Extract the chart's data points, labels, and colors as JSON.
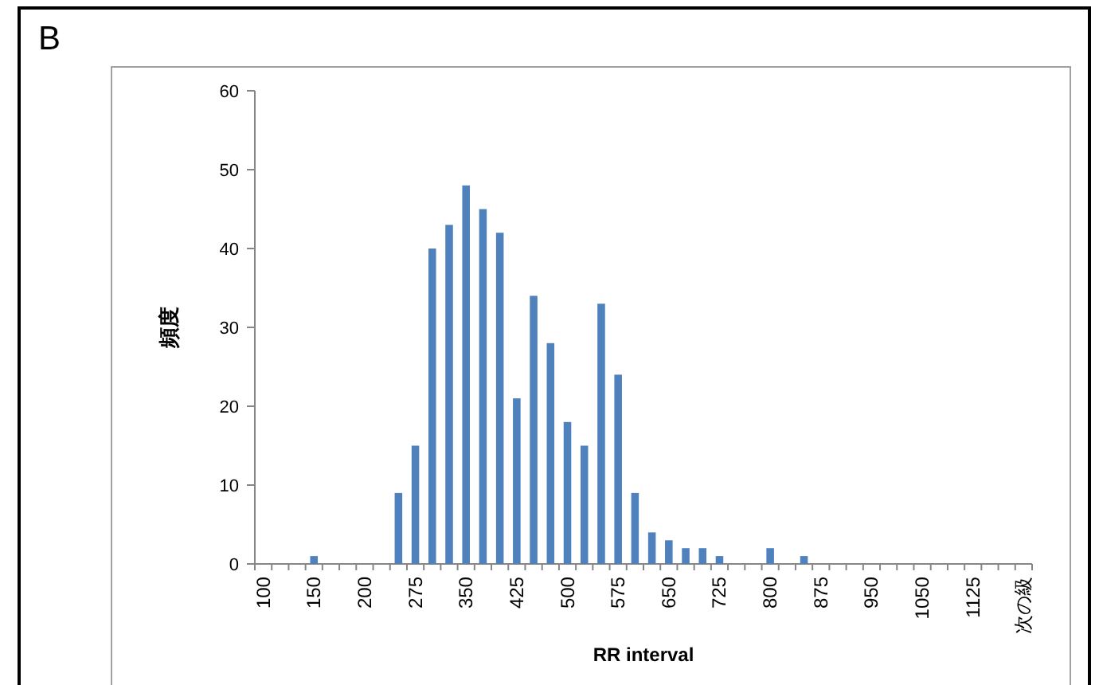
{
  "chart_data": {
    "type": "bar",
    "xlabel": "RR interval",
    "ylabel": "頻度",
    "annotations": [
      "B"
    ],
    "categories": [
      "100",
      null,
      null,
      "150",
      null,
      null,
      "200",
      null,
      null,
      "275",
      null,
      null,
      "350",
      null,
      null,
      "425",
      null,
      null,
      "500",
      null,
      null,
      "575",
      null,
      null,
      "650",
      null,
      null,
      "725",
      null,
      null,
      "800",
      null,
      null,
      "875",
      null,
      null,
      "950",
      null,
      null,
      "1050",
      null,
      null,
      "1125",
      null,
      null,
      "次の級"
    ],
    "values": [
      0,
      0,
      0,
      1,
      0,
      0,
      0,
      0,
      9,
      15,
      40,
      43,
      48,
      45,
      42,
      21,
      34,
      28,
      18,
      15,
      33,
      24,
      9,
      4,
      3,
      2,
      2,
      1,
      0,
      0,
      2,
      0,
      1,
      0,
      0,
      0,
      0,
      0,
      0,
      0,
      0,
      0,
      0,
      0,
      0,
      0
    ],
    "color": "#4f81bd",
    "ylim": [
      0,
      60
    ],
    "yticks": [
      0,
      10,
      20,
      30,
      40,
      50,
      60
    ],
    "grid": false
  }
}
